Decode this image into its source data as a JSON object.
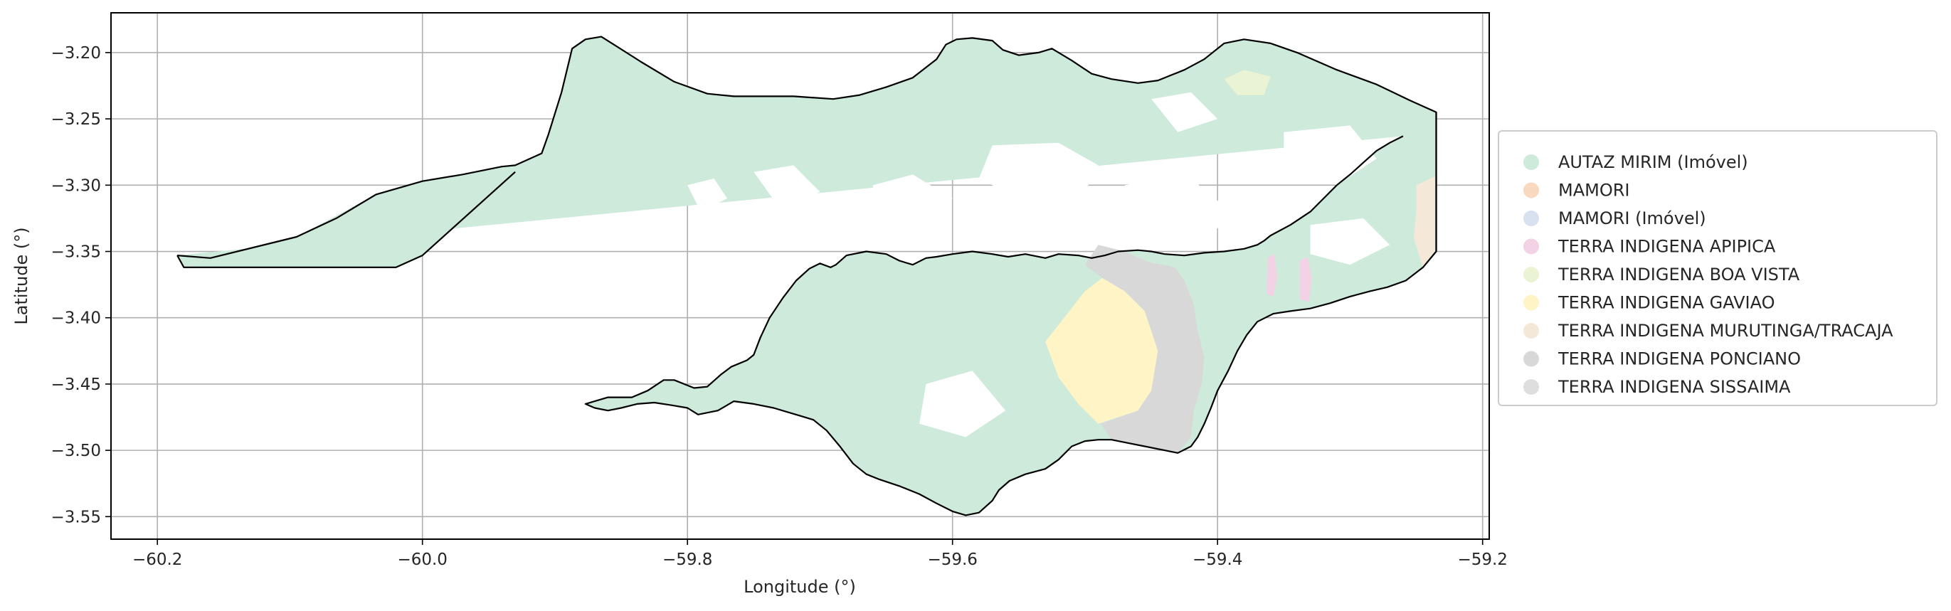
{
  "chart_data": {
    "type": "map",
    "xlabel": "Longitude (°)",
    "ylabel": "Latitude (°)",
    "xlim": [
      -60.235,
      -59.195
    ],
    "ylim": [
      -3.567,
      -3.17
    ],
    "x_ticks": [
      -60.2,
      -60.0,
      -59.8,
      -59.6,
      -59.4,
      -59.2
    ],
    "x_tick_labels": [
      "−60.2",
      "−60.0",
      "−59.8",
      "−59.6",
      "−59.4",
      "−59.2"
    ],
    "y_ticks": [
      -3.2,
      -3.25,
      -3.3,
      -3.35,
      -3.4,
      -3.45,
      -3.5,
      -3.55
    ],
    "y_tick_labels": [
      "−3.20",
      "−3.25",
      "−3.30",
      "−3.35",
      "−3.40",
      "−3.45",
      "−3.50",
      "−3.55"
    ],
    "grid": true,
    "legend_position": "right",
    "legend": [
      {
        "label": "AUTAZ MIRIM (Imóvel)",
        "color": "#cdeadb"
      },
      {
        "label": "MAMORI",
        "color": "#f9d8c0"
      },
      {
        "label": "MAMORI (Imóvel)",
        "color": "#d8e1f0"
      },
      {
        "label": "TERRA INDIGENA APIPICA",
        "color": "#f4d2e6"
      },
      {
        "label": "TERRA INDIGENA BOA VISTA",
        "color": "#eaf3d4"
      },
      {
        "label": "TERRA INDIGENA GAVIAO",
        "color": "#fff4c6"
      },
      {
        "label": "TERRA INDIGENA MURUTINGA/TRACAJA",
        "color": "#f4e8d8"
      },
      {
        "label": "TERRA INDIGENA PONCIANO",
        "color": "#d8d8d8"
      },
      {
        "label": "TERRA INDIGENA SISSAIMA",
        "color": "#dedede"
      }
    ],
    "outline": [
      [
        -60.185,
        -3.353
      ],
      [
        -60.16,
        -3.355
      ],
      [
        -60.095,
        -3.339
      ],
      [
        -60.065,
        -3.325
      ],
      [
        -60.035,
        -3.307
      ],
      [
        -60.0,
        -3.297
      ],
      [
        -59.97,
        -3.292
      ],
      [
        -59.94,
        -3.286
      ],
      [
        -59.93,
        -3.285
      ],
      [
        -59.91,
        -3.276
      ],
      [
        -59.905,
        -3.262
      ],
      [
        -59.895,
        -3.23
      ],
      [
        -59.887,
        -3.197
      ],
      [
        -59.877,
        -3.19
      ],
      [
        -59.865,
        -3.188
      ],
      [
        -59.857,
        -3.193
      ],
      [
        -59.835,
        -3.207
      ],
      [
        -59.81,
        -3.222
      ],
      [
        -59.785,
        -3.231
      ],
      [
        -59.765,
        -3.233
      ],
      [
        -59.72,
        -3.233
      ],
      [
        -59.69,
        -3.235
      ],
      [
        -59.67,
        -3.232
      ],
      [
        -59.65,
        -3.226
      ],
      [
        -59.63,
        -3.219
      ],
      [
        -59.612,
        -3.205
      ],
      [
        -59.605,
        -3.194
      ],
      [
        -59.597,
        -3.19
      ],
      [
        -59.585,
        -3.189
      ],
      [
        -59.57,
        -3.191
      ],
      [
        -59.562,
        -3.198
      ],
      [
        -59.55,
        -3.202
      ],
      [
        -59.535,
        -3.2
      ],
      [
        -59.525,
        -3.197
      ],
      [
        -59.51,
        -3.206
      ],
      [
        -59.495,
        -3.216
      ],
      [
        -59.48,
        -3.22
      ],
      [
        -59.46,
        -3.223
      ],
      [
        -59.445,
        -3.221
      ],
      [
        -59.425,
        -3.213
      ],
      [
        -59.41,
        -3.205
      ],
      [
        -59.395,
        -3.193
      ],
      [
        -59.38,
        -3.19
      ],
      [
        -59.36,
        -3.193
      ],
      [
        -59.34,
        -3.2
      ],
      [
        -59.31,
        -3.213
      ],
      [
        -59.28,
        -3.224
      ],
      [
        -59.255,
        -3.236
      ],
      [
        -59.235,
        -3.245
      ],
      [
        -59.235,
        -3.35
      ],
      [
        -59.245,
        -3.362
      ],
      [
        -59.258,
        -3.372
      ],
      [
        -59.272,
        -3.377
      ],
      [
        -59.285,
        -3.38
      ],
      [
        -59.3,
        -3.384
      ],
      [
        -59.315,
        -3.389
      ],
      [
        -59.33,
        -3.393
      ],
      [
        -59.345,
        -3.395
      ],
      [
        -59.358,
        -3.397
      ],
      [
        -59.37,
        -3.403
      ],
      [
        -59.378,
        -3.413
      ],
      [
        -59.385,
        -3.425
      ],
      [
        -59.392,
        -3.44
      ],
      [
        -59.4,
        -3.455
      ],
      [
        -59.405,
        -3.468
      ],
      [
        -59.41,
        -3.48
      ],
      [
        -59.415,
        -3.49
      ],
      [
        -59.42,
        -3.497
      ],
      [
        -59.43,
        -3.502
      ],
      [
        -59.44,
        -3.5
      ],
      [
        -59.455,
        -3.497
      ],
      [
        -59.47,
        -3.494
      ],
      [
        -59.48,
        -3.492
      ],
      [
        -59.49,
        -3.492
      ],
      [
        -59.5,
        -3.493
      ],
      [
        -59.51,
        -3.497
      ],
      [
        -59.52,
        -3.507
      ],
      [
        -59.53,
        -3.514
      ],
      [
        -59.545,
        -3.518
      ],
      [
        -59.557,
        -3.523
      ],
      [
        -59.565,
        -3.53
      ],
      [
        -59.57,
        -3.538
      ],
      [
        -59.58,
        -3.547
      ],
      [
        -59.59,
        -3.549
      ],
      [
        -59.6,
        -3.546
      ],
      [
        -59.612,
        -3.54
      ],
      [
        -59.625,
        -3.533
      ],
      [
        -59.64,
        -3.527
      ],
      [
        -59.655,
        -3.522
      ],
      [
        -59.665,
        -3.518
      ],
      [
        -59.675,
        -3.51
      ],
      [
        -59.685,
        -3.497
      ],
      [
        -59.695,
        -3.485
      ],
      [
        -59.705,
        -3.477
      ],
      [
        -59.715,
        -3.474
      ],
      [
        -59.725,
        -3.471
      ],
      [
        -59.735,
        -3.468
      ],
      [
        -59.75,
        -3.465
      ],
      [
        -59.765,
        -3.463
      ],
      [
        -59.777,
        -3.47
      ],
      [
        -59.792,
        -3.473
      ],
      [
        -59.8,
        -3.468
      ],
      [
        -59.812,
        -3.466
      ],
      [
        -59.825,
        -3.464
      ],
      [
        -59.838,
        -3.465
      ],
      [
        -59.85,
        -3.468
      ],
      [
        -59.86,
        -3.47
      ],
      [
        -59.87,
        -3.468
      ],
      [
        -59.877,
        -3.465
      ],
      [
        -59.86,
        -3.46
      ],
      [
        -59.842,
        -3.46
      ],
      [
        -59.83,
        -3.455
      ],
      [
        -59.818,
        -3.447
      ],
      [
        -59.81,
        -3.447
      ],
      [
        -59.795,
        -3.453
      ],
      [
        -59.785,
        -3.452
      ],
      [
        -59.775,
        -3.443
      ],
      [
        -59.767,
        -3.437
      ],
      [
        -59.755,
        -3.432
      ],
      [
        -59.75,
        -3.428
      ],
      [
        -59.745,
        -3.415
      ],
      [
        -59.738,
        -3.4
      ],
      [
        -59.728,
        -3.385
      ],
      [
        -59.718,
        -3.372
      ],
      [
        -59.708,
        -3.363
      ],
      [
        -59.7,
        -3.359
      ],
      [
        -59.692,
        -3.362
      ],
      [
        -59.688,
        -3.36
      ],
      [
        -59.68,
        -3.353
      ],
      [
        -59.665,
        -3.35
      ],
      [
        -59.65,
        -3.352
      ],
      [
        -59.64,
        -3.357
      ],
      [
        -59.63,
        -3.36
      ],
      [
        -59.62,
        -3.355
      ],
      [
        -59.612,
        -3.354
      ],
      [
        -59.6,
        -3.352
      ],
      [
        -59.585,
        -3.35
      ],
      [
        -59.57,
        -3.352
      ],
      [
        -59.558,
        -3.354
      ],
      [
        -59.545,
        -3.352
      ],
      [
        -59.53,
        -3.355
      ],
      [
        -59.52,
        -3.352
      ],
      [
        -59.505,
        -3.353
      ],
      [
        -59.495,
        -3.355
      ],
      [
        -59.485,
        -3.353
      ],
      [
        -59.475,
        -3.35
      ],
      [
        -59.46,
        -3.349
      ],
      [
        -59.45,
        -3.35
      ],
      [
        -59.44,
        -3.352
      ],
      [
        -59.425,
        -3.353
      ],
      [
        -59.41,
        -3.351
      ],
      [
        -59.395,
        -3.35
      ],
      [
        -59.38,
        -3.348
      ],
      [
        -59.37,
        -3.345
      ],
      [
        -59.365,
        -3.342
      ],
      [
        -59.36,
        -3.338
      ],
      [
        -59.345,
        -3.33
      ],
      [
        -59.33,
        -3.32
      ],
      [
        -59.32,
        -3.31
      ],
      [
        -59.31,
        -3.3
      ],
      [
        -59.3,
        -3.292
      ],
      [
        -59.29,
        -3.283
      ],
      [
        -59.28,
        -3.274
      ],
      [
        -59.27,
        -3.268
      ],
      [
        -59.26,
        -3.263
      ]
    ],
    "region_colors_note": "Polygons drawn as filled areas in map units (degrees)."
  }
}
